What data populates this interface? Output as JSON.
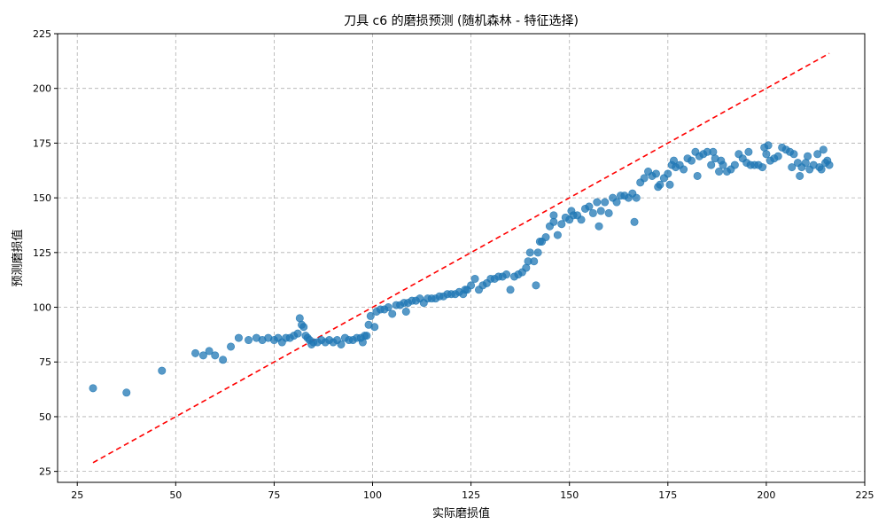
{
  "chart_data": {
    "type": "scatter",
    "title": "刀具 c6 的磨损预测 (随机森林 - 特征选择)",
    "xlabel": "实际磨损值",
    "ylabel": "预测磨损值",
    "xlim": [
      20,
      225
    ],
    "ylim": [
      20,
      225
    ],
    "xticks": [
      25,
      50,
      75,
      100,
      125,
      150,
      175,
      200,
      225
    ],
    "yticks": [
      25,
      50,
      75,
      100,
      125,
      150,
      175,
      200,
      225
    ],
    "grid": true,
    "point_color": "#1f77b4",
    "reference_line": {
      "color": "#ff0000",
      "style": "dashed",
      "x": [
        29,
        216
      ],
      "y": [
        29,
        216
      ]
    },
    "series": [
      {
        "points": [
          [
            29,
            63
          ],
          [
            37.5,
            61
          ],
          [
            46.5,
            71
          ],
          [
            55,
            79
          ],
          [
            57,
            78
          ],
          [
            58.5,
            80
          ],
          [
            60,
            78
          ],
          [
            62,
            76
          ],
          [
            64,
            82
          ],
          [
            66,
            86
          ],
          [
            68.5,
            85
          ],
          [
            70.5,
            86
          ],
          [
            72,
            85
          ],
          [
            73.5,
            86
          ],
          [
            75,
            85
          ],
          [
            76,
            86
          ],
          [
            77,
            84
          ],
          [
            78,
            86
          ],
          [
            79,
            86
          ],
          [
            80,
            87
          ],
          [
            81,
            88
          ],
          [
            81.5,
            95
          ],
          [
            82,
            92
          ],
          [
            82.5,
            91
          ],
          [
            83,
            87
          ],
          [
            83.5,
            86
          ],
          [
            84,
            85
          ],
          [
            84.5,
            83
          ],
          [
            85,
            84
          ],
          [
            86,
            84
          ],
          [
            87,
            85
          ],
          [
            88,
            84
          ],
          [
            89,
            85
          ],
          [
            90,
            84
          ],
          [
            91,
            85
          ],
          [
            92,
            83
          ],
          [
            93,
            86
          ],
          [
            94,
            85
          ],
          [
            95,
            85
          ],
          [
            96,
            86
          ],
          [
            97,
            86
          ],
          [
            97.5,
            84
          ],
          [
            98,
            87
          ],
          [
            98.5,
            87
          ],
          [
            99,
            92
          ],
          [
            99.5,
            96
          ],
          [
            100.5,
            91
          ],
          [
            101,
            98
          ],
          [
            102,
            99
          ],
          [
            103,
            99
          ],
          [
            104,
            100
          ],
          [
            105,
            97
          ],
          [
            106,
            101
          ],
          [
            107,
            101
          ],
          [
            108,
            102
          ],
          [
            108.5,
            98
          ],
          [
            109,
            102
          ],
          [
            110,
            103
          ],
          [
            111,
            103
          ],
          [
            112,
            104
          ],
          [
            113,
            102
          ],
          [
            114,
            104
          ],
          [
            115,
            104
          ],
          [
            116,
            104
          ],
          [
            117,
            105
          ],
          [
            118,
            105
          ],
          [
            119,
            106
          ],
          [
            120,
            106
          ],
          [
            121,
            106
          ],
          [
            122,
            107
          ],
          [
            123,
            106
          ],
          [
            123.5,
            108
          ],
          [
            124,
            108
          ],
          [
            125,
            110
          ],
          [
            126,
            113
          ],
          [
            127,
            108
          ],
          [
            128,
            110
          ],
          [
            129,
            111
          ],
          [
            130,
            113
          ],
          [
            131,
            113
          ],
          [
            132,
            114
          ],
          [
            133,
            114
          ],
          [
            134,
            115
          ],
          [
            135,
            108
          ],
          [
            136,
            114
          ],
          [
            137,
            115
          ],
          [
            138,
            116
          ],
          [
            139,
            118
          ],
          [
            139.5,
            121
          ],
          [
            140,
            125
          ],
          [
            141,
            121
          ],
          [
            141.5,
            110
          ],
          [
            142,
            125
          ],
          [
            142.5,
            130
          ],
          [
            143,
            130
          ],
          [
            144,
            132
          ],
          [
            145,
            137
          ],
          [
            146,
            139
          ],
          [
            146,
            142
          ],
          [
            147,
            133
          ],
          [
            148,
            138
          ],
          [
            149,
            141
          ],
          [
            150,
            140
          ],
          [
            150.5,
            144
          ],
          [
            151,
            142
          ],
          [
            152,
            142
          ],
          [
            153,
            140
          ],
          [
            154,
            145
          ],
          [
            155,
            146
          ],
          [
            156,
            143
          ],
          [
            157,
            148
          ],
          [
            157.5,
            137
          ],
          [
            158,
            144
          ],
          [
            159,
            148
          ],
          [
            160,
            143
          ],
          [
            161,
            150
          ],
          [
            162,
            148
          ],
          [
            163,
            151
          ],
          [
            164,
            151
          ],
          [
            165,
            150
          ],
          [
            166,
            152
          ],
          [
            166.5,
            139
          ],
          [
            167,
            150
          ],
          [
            168,
            157
          ],
          [
            169,
            159
          ],
          [
            170,
            162
          ],
          [
            171,
            160
          ],
          [
            172,
            161
          ],
          [
            172.5,
            155
          ],
          [
            173,
            156
          ],
          [
            174,
            159
          ],
          [
            175,
            161
          ],
          [
            175.5,
            156
          ],
          [
            176,
            165
          ],
          [
            176.5,
            167
          ],
          [
            177,
            164
          ],
          [
            178,
            165
          ],
          [
            179,
            163
          ],
          [
            180,
            168
          ],
          [
            181,
            167
          ],
          [
            182,
            171
          ],
          [
            182.5,
            160
          ],
          [
            183,
            169
          ],
          [
            184,
            170
          ],
          [
            185,
            171
          ],
          [
            186,
            165
          ],
          [
            186.5,
            171
          ],
          [
            187,
            168
          ],
          [
            188,
            162
          ],
          [
            188.5,
            167
          ],
          [
            189,
            165
          ],
          [
            190,
            162
          ],
          [
            191,
            163
          ],
          [
            192,
            165
          ],
          [
            193,
            170
          ],
          [
            194,
            168
          ],
          [
            195,
            166
          ],
          [
            195.5,
            171
          ],
          [
            196,
            165
          ],
          [
            197,
            165
          ],
          [
            198,
            165
          ],
          [
            199,
            164
          ],
          [
            199.5,
            173
          ],
          [
            200,
            170
          ],
          [
            200.5,
            174
          ],
          [
            201,
            167
          ],
          [
            202,
            168
          ],
          [
            203,
            169
          ],
          [
            204,
            173
          ],
          [
            205,
            172
          ],
          [
            206,
            171
          ],
          [
            206.5,
            164
          ],
          [
            207,
            170
          ],
          [
            208,
            166
          ],
          [
            208.5,
            160
          ],
          [
            209,
            164
          ],
          [
            210,
            166
          ],
          [
            210.5,
            169
          ],
          [
            211,
            163
          ],
          [
            212,
            165
          ],
          [
            213,
            170
          ],
          [
            213.5,
            164
          ],
          [
            214,
            163
          ],
          [
            214.5,
            172
          ],
          [
            215,
            166
          ],
          [
            215.5,
            167
          ],
          [
            216,
            165
          ]
        ]
      }
    ]
  }
}
